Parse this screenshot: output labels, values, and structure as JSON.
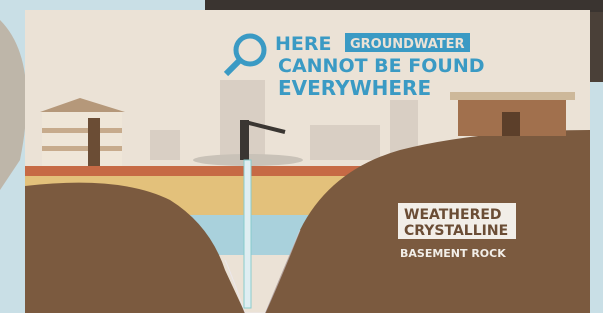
{
  "title": {
    "first": "HERE",
    "highlight": "GROUNDWATER",
    "second": "CANNOT BE FOUND",
    "third": "EVERYWHERE"
  },
  "label": {
    "first": "WEATHERED",
    "second": "CRYSTALLINE",
    "third": "BASEMENT ROCK"
  }
}
